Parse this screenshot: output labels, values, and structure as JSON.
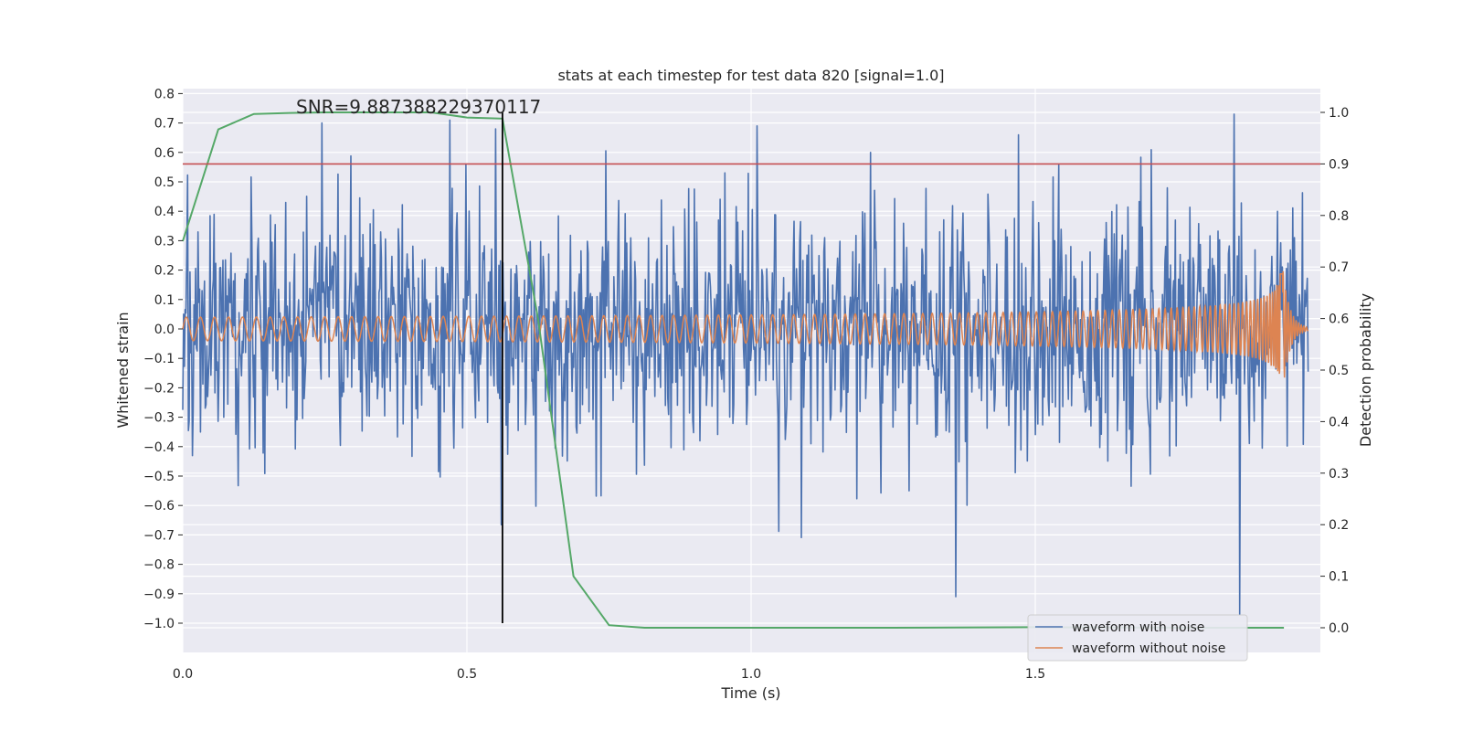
{
  "chart_data": {
    "type": "line",
    "title": "stats at each timestep for test data 820 [signal=1.0]",
    "annotation": "SNR=9.887388229370117",
    "xlabel": "Time (s)",
    "ylabel_left": "Whitened strain",
    "ylabel_right": "Detection probability",
    "xlim": [
      0.0,
      2.0
    ],
    "ylim_left": [
      -1.08,
      0.82
    ],
    "ylim_right": [
      -0.048,
      1.043
    ],
    "x_ticks": [
      "0.0",
      "0.5",
      "1.0",
      "1.5"
    ],
    "x_tick_values": [
      0.0,
      0.5,
      1.0,
      1.5
    ],
    "left_ticks": [
      "0.8",
      "0.7",
      "0.6",
      "0.5",
      "0.4",
      "0.3",
      "0.2",
      "0.1",
      "0.0",
      "−0.1",
      "−0.2",
      "−0.3",
      "−0.4",
      "−0.5",
      "−0.6",
      "−0.7",
      "−0.8",
      "−0.9",
      "−1.0"
    ],
    "left_tick_values": [
      0.8,
      0.7,
      0.6,
      0.5,
      0.4,
      0.3,
      0.2,
      0.1,
      0.0,
      -0.1,
      -0.2,
      -0.3,
      -0.4,
      -0.5,
      -0.6,
      -0.7,
      -0.8,
      -0.9,
      -1.0
    ],
    "right_ticks": [
      "1.0",
      "0.9",
      "0.8",
      "0.7",
      "0.6",
      "0.5",
      "0.4",
      "0.3",
      "0.2",
      "0.1",
      "0.0"
    ],
    "right_tick_values": [
      1.0,
      0.9,
      0.8,
      0.7,
      0.6,
      0.5,
      0.4,
      0.3,
      0.2,
      0.1,
      0.0
    ],
    "threshold_probability": 0.9,
    "detection_time": 0.5625,
    "series": [
      {
        "name": "waveform with noise",
        "axis": "left",
        "color": "#4c72b0",
        "description": "noisy whitened strain, roughly Gaussian with std ~0.2, spikes to about 0.73 and -0.97",
        "peaks": [
          {
            "x": 0.245,
            "y": 0.7
          },
          {
            "x": 0.47,
            "y": 0.71
          },
          {
            "x": 0.55,
            "y": 0.68
          },
          {
            "x": 1.01,
            "y": 0.69
          },
          {
            "x": 1.21,
            "y": 0.6
          },
          {
            "x": 1.36,
            "y": -0.91
          },
          {
            "x": 1.47,
            "y": 0.66
          },
          {
            "x": 1.85,
            "y": 0.73
          },
          {
            "x": 1.86,
            "y": -0.97
          }
        ]
      },
      {
        "name": "waveform without noise",
        "axis": "left",
        "color": "#dd8452",
        "description": "chirp with amplitude ~0.04 growing to ~0.22 near t=1.93 then ringdown",
        "envelope": {
          "start_amp": 0.04,
          "peak_amp": 0.22,
          "merger_time": 1.935
        }
      },
      {
        "name": "Detection probability",
        "axis": "right",
        "color": "#55a868",
        "x": [
          0.0,
          0.0625,
          0.125,
          0.1875,
          0.25,
          0.3125,
          0.375,
          0.4375,
          0.5,
          0.5625,
          0.625,
          0.6875,
          0.75,
          0.8125,
          0.875,
          1.0,
          1.25,
          1.5,
          1.75,
          1.9375
        ],
        "values": [
          0.75,
          0.967,
          0.997,
          0.999,
          1.0,
          1.0,
          1.0,
          1.0,
          0.99,
          0.988,
          0.6,
          0.1,
          0.005,
          0.0,
          0.0,
          0.0,
          0.0,
          0.001,
          0.0,
          0.0
        ]
      }
    ],
    "legend": {
      "placement": "lower-right",
      "entries": [
        {
          "label": "waveform with noise",
          "color": "#4c72b0"
        },
        {
          "label": "waveform without noise",
          "color": "#dd8452"
        }
      ]
    },
    "colors": {
      "background": "#eaeaf2",
      "grid": "#ffffff",
      "threshold": "#c44e52",
      "marker": "#000000",
      "text": "#262626"
    }
  }
}
